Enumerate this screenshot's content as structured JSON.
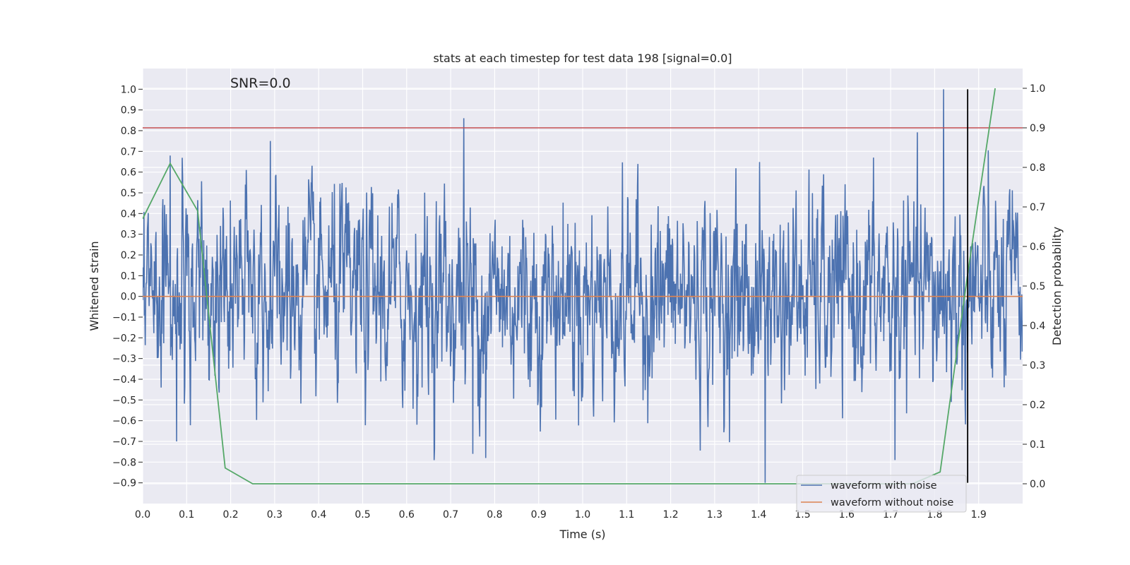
{
  "chart_data": {
    "type": "line",
    "title": "stats at each timestep for test data 198 [signal=0.0]",
    "xlabel": "Time (s)",
    "ylabel": "Whitened strain",
    "y2label": "Detection probability",
    "xlim": [
      0.0,
      2.0
    ],
    "ylim": [
      -1.0,
      1.1
    ],
    "y2lim": [
      -0.05,
      1.05
    ],
    "x_ticks": [
      "0.0",
      "0.1",
      "0.2",
      "0.3",
      "0.4",
      "0.5",
      "0.6",
      "0.7",
      "0.8",
      "0.9",
      "1.0",
      "1.1",
      "1.2",
      "1.3",
      "1.4",
      "1.5",
      "1.6",
      "1.7",
      "1.8",
      "1.9"
    ],
    "y_ticks": [
      "1.0",
      "0.9",
      "0.8",
      "0.7",
      "0.6",
      "0.5",
      "0.4",
      "0.3",
      "0.2",
      "0.1",
      "0.0",
      "−0.1",
      "−0.2",
      "−0.3",
      "−0.4",
      "−0.5",
      "−0.6",
      "−0.7",
      "−0.8",
      "−0.9"
    ],
    "y2_ticks": [
      "1.0",
      "0.9",
      "0.8",
      "0.7",
      "0.6",
      "0.5",
      "0.4",
      "0.3",
      "0.2",
      "0.1",
      "0.0"
    ],
    "annotation": "SNR=0.0",
    "grid": true,
    "legend_position": "lower-right",
    "colors": {
      "background": "#eaeaf2",
      "noise": "#4c72b0",
      "clean": "#dd8452",
      "probability": "#55a868",
      "threshold": "#c44e52",
      "marker": "#000000"
    },
    "noise_series": {
      "name": "waveform with noise",
      "n_points": 2048,
      "approx_range": [
        -0.9,
        1.0
      ],
      "peaks": [
        {
          "x": 0.063,
          "y": 0.68
        },
        {
          "x": 0.29,
          "y": 0.75
        },
        {
          "x": 0.73,
          "y": 0.86
        },
        {
          "x": 1.82,
          "y": 1.0
        },
        {
          "x": 1.415,
          "y": -0.9
        },
        {
          "x": 0.78,
          "y": -0.78
        },
        {
          "x": 0.75,
          "y": -0.76
        },
        {
          "x": 1.71,
          "y": -0.79
        },
        {
          "x": 0.077,
          "y": -0.7
        }
      ]
    },
    "clean_series": {
      "name": "waveform without noise",
      "x": [
        0.0,
        2.0
      ],
      "values": [
        0.0,
        0.0
      ]
    },
    "probability_series": {
      "axis": "right",
      "x": [
        0.0,
        0.0625,
        0.125,
        0.1875,
        0.25,
        0.3125,
        0.375,
        0.4375,
        0.5,
        0.5625,
        0.625,
        0.6875,
        0.75,
        0.8125,
        0.875,
        0.9375,
        1.0,
        1.0625,
        1.125,
        1.1875,
        1.25,
        1.3125,
        1.375,
        1.4375,
        1.5,
        1.5625,
        1.625,
        1.6875,
        1.75,
        1.8125,
        1.875,
        1.9375
      ],
      "values": [
        0.67,
        0.81,
        0.69,
        0.04,
        0.0,
        0.0,
        0.0,
        0.0,
        0.0,
        0.0,
        0.0,
        0.0,
        0.0,
        0.0,
        0.0,
        0.0,
        0.0,
        0.0,
        0.0,
        0.0,
        0.0,
        0.0,
        0.0,
        0.0,
        0.0,
        0.0,
        0.0,
        0.0,
        0.0,
        0.03,
        0.53,
        1.0
      ]
    },
    "threshold": {
      "axis": "right",
      "value": 0.9
    },
    "marker_line": {
      "x": 1.875,
      "y_range": [
        -0.9,
        1.0
      ]
    }
  }
}
